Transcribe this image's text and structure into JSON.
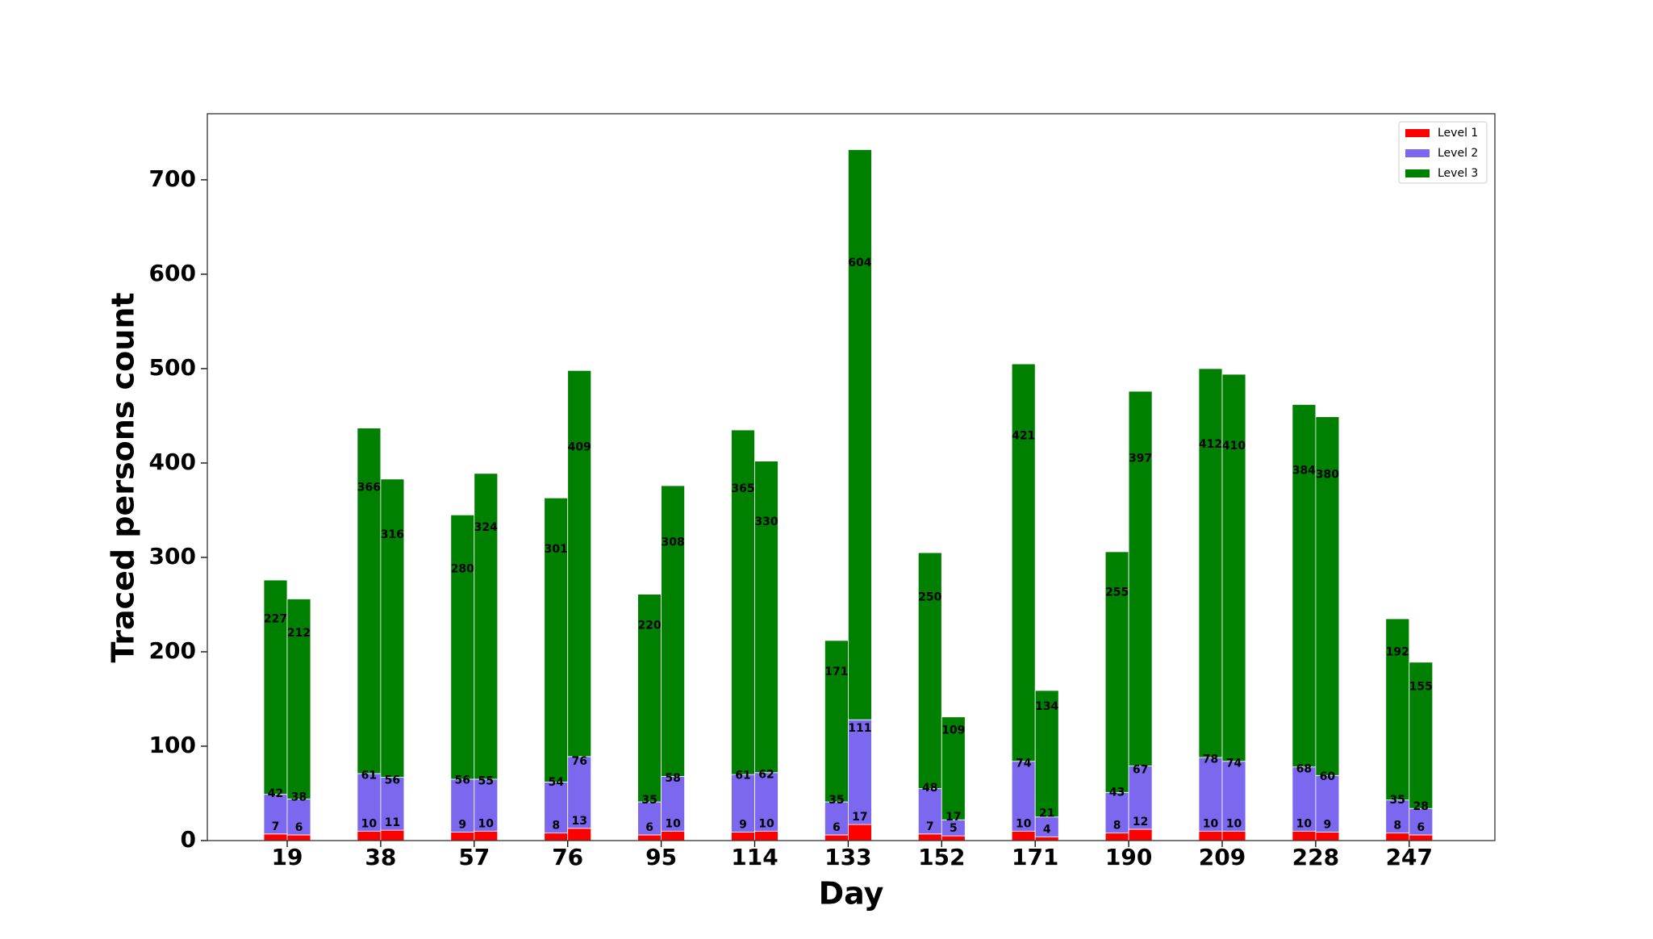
{
  "chart_data": {
    "type": "grouped-stacked-bar",
    "x_label": "Day",
    "y_label": "Traced persons count",
    "categories": [
      "19",
      "38",
      "57",
      "76",
      "95",
      "114",
      "133",
      "152",
      "171",
      "190",
      "209",
      "228",
      "247"
    ],
    "series": [
      {
        "name": "Level 1",
        "color": "#ff0000",
        "values": [
          [
            7,
            6
          ],
          [
            10,
            11
          ],
          [
            9,
            10
          ],
          [
            8,
            13
          ],
          [
            6,
            10
          ],
          [
            9,
            10
          ],
          [
            6,
            17
          ],
          [
            7,
            5
          ],
          [
            10,
            4
          ],
          [
            8,
            12
          ],
          [
            10,
            10
          ],
          [
            10,
            9
          ],
          [
            8,
            6
          ]
        ]
      },
      {
        "name": "Level 2",
        "color": "#7b68ee",
        "values": [
          [
            42,
            38
          ],
          [
            61,
            56
          ],
          [
            56,
            55
          ],
          [
            54,
            76
          ],
          [
            35,
            58
          ],
          [
            61,
            62
          ],
          [
            35,
            111
          ],
          [
            48,
            17
          ],
          [
            74,
            21
          ],
          [
            43,
            67
          ],
          [
            78,
            74
          ],
          [
            68,
            60
          ],
          [
            35,
            28
          ]
        ]
      },
      {
        "name": "Level 3",
        "color": "#008000",
        "values": [
          [
            227,
            212
          ],
          [
            366,
            316
          ],
          [
            280,
            324
          ],
          [
            301,
            409
          ],
          [
            220,
            308
          ],
          [
            365,
            330
          ],
          [
            171,
            604
          ],
          [
            250,
            109
          ],
          [
            421,
            134
          ],
          [
            255,
            397
          ],
          [
            412,
            410
          ],
          [
            384,
            380
          ],
          [
            192,
            155
          ]
        ]
      }
    ],
    "ylim": [
      0,
      770
    ],
    "yticks": [
      0,
      100,
      200,
      300,
      400,
      500,
      600,
      700
    ],
    "grid": false,
    "legend": "upper right"
  }
}
